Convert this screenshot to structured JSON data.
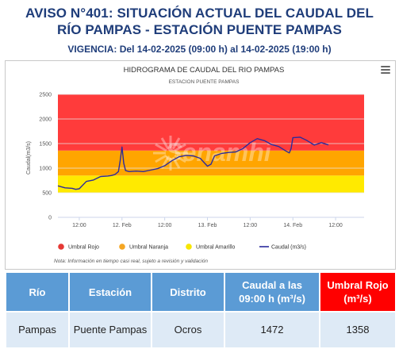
{
  "header": {
    "title_line1": "AVISO N°401: SITUACIÓN ACTUAL DEL CAUDAL DEL",
    "title_line2": "RÍO PAMPAS - ESTACIÓN PUENTE PAMPAS",
    "vigencia": "VIGENCIA: Del 14-02-2025 (09:00 h) al 14-02-2025 (19:00 h)"
  },
  "chart_data": {
    "type": "line",
    "title": "HIDROGRAMA DE CAUDAL DEL RIO PAMPAS",
    "subtitle": "ESTACION PUENTE PAMPAS",
    "ylabel": "Caudal(m3/s)",
    "xlabel": "",
    "ylim": [
      0,
      2500
    ],
    "yticks": [
      0,
      500,
      1000,
      1500,
      2000,
      2500
    ],
    "xlim": [
      0,
      86
    ],
    "xticks": [
      {
        "x": 6,
        "label": "12:00"
      },
      {
        "x": 18,
        "label": "12. Feb"
      },
      {
        "x": 30,
        "label": "12:00"
      },
      {
        "x": 42,
        "label": "13. Feb"
      },
      {
        "x": 54,
        "label": "12:00"
      },
      {
        "x": 66,
        "label": "14. Feb"
      },
      {
        "x": 78,
        "label": "12:00"
      }
    ],
    "bands": [
      {
        "name": "Umbral Amarillo",
        "from": 500,
        "to": 850,
        "color": "#ffea00"
      },
      {
        "name": "Umbral Naranja",
        "from": 850,
        "to": 1358,
        "color": "#ffa500"
      },
      {
        "name": "Umbral Rojo",
        "from": 1358,
        "to": 2500,
        "color": "#ff3b3b"
      }
    ],
    "series": [
      {
        "name": "Caudal (m3/s)",
        "color": "#2b2b9c",
        "x": [
          0,
          2,
          4,
          5,
          6,
          8,
          10,
          12,
          14,
          15,
          16,
          17,
          17.5,
          18,
          18.5,
          19,
          20,
          22,
          24,
          26,
          28,
          30,
          32,
          34,
          36,
          38,
          40,
          41,
          42,
          43,
          44,
          46,
          48,
          50,
          52,
          54,
          56,
          58,
          60,
          62,
          64,
          65,
          65.5,
          66,
          68,
          70,
          72,
          74,
          76
        ],
        "values": [
          640,
          600,
          590,
          570,
          580,
          730,
          760,
          830,
          840,
          850,
          870,
          930,
          1150,
          1430,
          1100,
          950,
          930,
          940,
          930,
          960,
          990,
          1050,
          1150,
          1230,
          1260,
          1250,
          1200,
          1120,
          1040,
          1080,
          1250,
          1300,
          1320,
          1330,
          1400,
          1520,
          1600,
          1560,
          1480,
          1440,
          1350,
          1310,
          1400,
          1620,
          1630,
          1560,
          1470,
          1520,
          1472
        ]
      }
    ],
    "legend": {
      "placement": "bottom",
      "items": [
        {
          "label": "Umbral Rojo",
          "color": "#e53935",
          "kind": "dot"
        },
        {
          "label": "Umbral Naranja",
          "color": "#f5a623",
          "kind": "dot"
        },
        {
          "label": "Umbral Amarillo",
          "color": "#f7e600",
          "kind": "dot"
        },
        {
          "label": "Caudal (m3/s)",
          "color": "#2b2b9c",
          "kind": "line"
        }
      ]
    },
    "watermark": "Senamhi",
    "note": "Nota: Información en tiempo casi real, sujeto a revisión y validación"
  },
  "table": {
    "headers": [
      "Río",
      "Estación",
      "Distrito",
      "Caudal a las 09:00 h (m³/s)",
      "Umbral Rojo (m³/s)"
    ],
    "rows": [
      [
        "Pampas",
        "Puente Pampas",
        "Ocros",
        "1472",
        "1358"
      ]
    ]
  }
}
